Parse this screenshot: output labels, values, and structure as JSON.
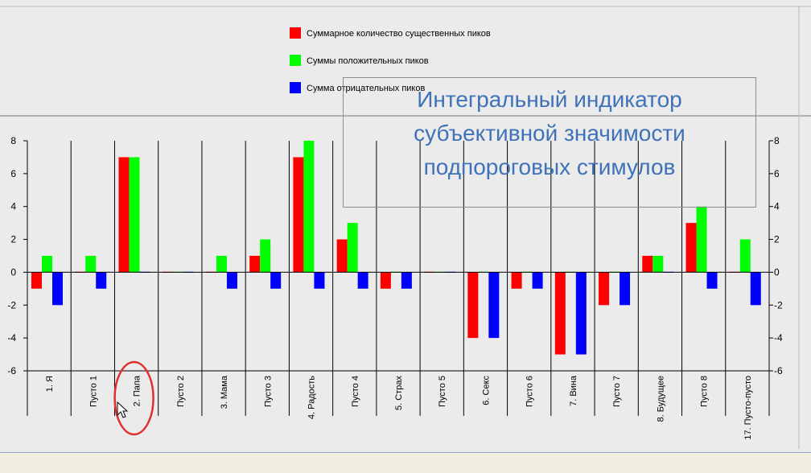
{
  "chart_data": {
    "type": "bar",
    "categories": [
      "1. Я",
      "Пусто 1",
      "2. Папа",
      "Пусто 2",
      "3. Мама",
      "Пусто 3",
      "4. Радость",
      "Пусто 4",
      "5. Страх",
      "Пусто 5",
      "6. Секс",
      "Пусто 6",
      "7. Вина",
      "Пусто 7",
      "8. Будущее",
      "Пусто 8",
      "17. Пусто-пусто"
    ],
    "series": [
      {
        "name": "Суммарное количество существенных пиков",
        "color": "#ff0000",
        "values": [
          -1,
          0,
          7,
          0,
          0,
          1,
          7,
          2,
          -1,
          0,
          -4,
          -1,
          -5,
          -2,
          1,
          3,
          0
        ]
      },
      {
        "name": "Суммы положительных пиков",
        "color": "#00ff00",
        "values": [
          1,
          1,
          7,
          0,
          1,
          2,
          8,
          3,
          0,
          0,
          0,
          0,
          0,
          0,
          1,
          4,
          2
        ]
      },
      {
        "name": "Сумма отрицательных пиков",
        "color": "#0000ff",
        "values": [
          -2,
          -1,
          0,
          0,
          -1,
          -1,
          -1,
          -1,
          -1,
          0,
          -4,
          -1,
          -5,
          -2,
          0,
          -1,
          -2
        ]
      }
    ],
    "ylim": [
      -6,
      8
    ],
    "yticks": [
      "8",
      "6",
      "4",
      "2",
      "0",
      "-2",
      "-4",
      "-6"
    ],
    "legend_placement": "top"
  },
  "annotation": {
    "lines": [
      "Интегральный индикатор",
      "субъективной значимости",
      "подпороговых стимулов"
    ],
    "color": "#3f72b8"
  },
  "highlight": {
    "category": "2. Папа",
    "color": "#e03030"
  }
}
